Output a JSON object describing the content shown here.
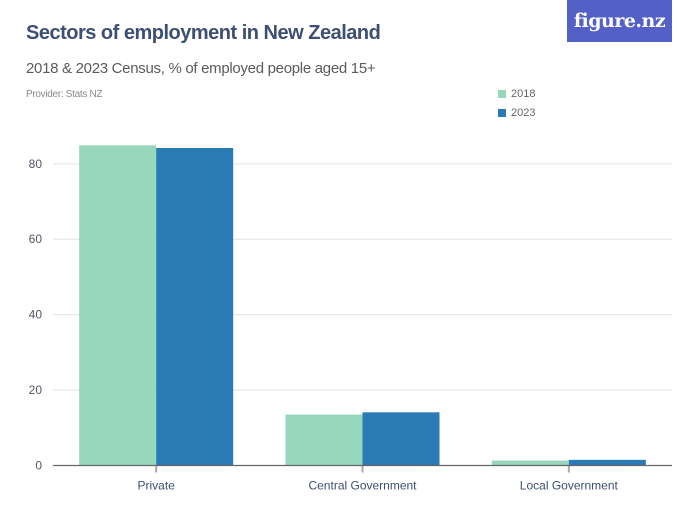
{
  "header": {
    "title": "Sectors of employment in New Zealand",
    "subtitle": "2018 & 2023 Census, % of employed people aged 15+",
    "provider": "Provider: Stats NZ",
    "logo": "figure.nz"
  },
  "legend": [
    {
      "label": "2018",
      "color": "#97d7bb"
    },
    {
      "label": "2023",
      "color": "#2a7ab6"
    }
  ],
  "chart_data": {
    "type": "bar",
    "title": "Sectors of employment in New Zealand",
    "subtitle": "2018 & 2023 Census, % of employed people aged 15+",
    "categories": [
      "Private",
      "Central Government",
      "Local Government"
    ],
    "series": [
      {
        "name": "2018",
        "color": "#97d7bb",
        "values": [
          84.9,
          13.5,
          1.3
        ]
      },
      {
        "name": "2023",
        "color": "#2a7ab6",
        "values": [
          84.2,
          14.1,
          1.5
        ]
      }
    ],
    "xlabel": "",
    "ylabel": "",
    "ylim": [
      0,
      85
    ],
    "yticks": [
      0,
      20,
      40,
      60,
      80
    ],
    "grid": true,
    "legend_position": "top-right"
  }
}
